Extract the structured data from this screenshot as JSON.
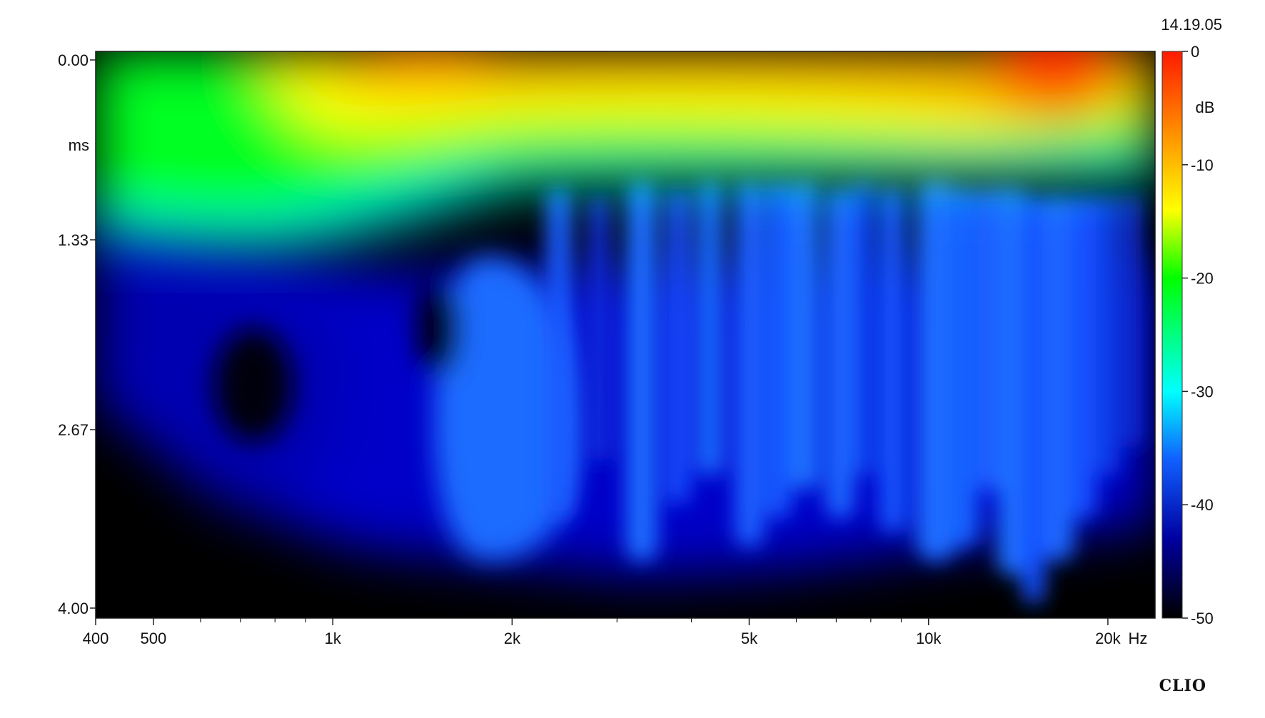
{
  "header": {
    "timestamp": "14.19.05"
  },
  "brand": {
    "text": "CLIO"
  },
  "chart_data": {
    "type": "heatmap",
    "title": "",
    "xlabel": "Hz",
    "ylabel": "ms",
    "x_scale": "log",
    "xlim": [
      400,
      24000
    ],
    "ylim": [
      0.0,
      4.0
    ],
    "x_tick_labels": [
      {
        "value": 400,
        "label": "400"
      },
      {
        "value": 500,
        "label": "500"
      },
      {
        "value": 1000,
        "label": "1k"
      },
      {
        "value": 2000,
        "label": "2k"
      },
      {
        "value": 5000,
        "label": "5k"
      },
      {
        "value": 10000,
        "label": "10k"
      },
      {
        "value": 20000,
        "label": "20k"
      }
    ],
    "x_minor_ticks": [
      600,
      700,
      800,
      900,
      3000,
      4000,
      6000,
      7000,
      8000,
      9000
    ],
    "y_tick_labels": [
      {
        "value": 0.0,
        "label": "0.00"
      },
      {
        "value": 1.33,
        "label": "1.33"
      },
      {
        "value": 2.67,
        "label": "2.67"
      },
      {
        "value": 4.0,
        "label": "4.00"
      }
    ],
    "colorbar": {
      "unit": "dB",
      "range": [
        -50,
        0
      ],
      "ticks": [
        0,
        -10,
        -20,
        -30,
        -40,
        -50
      ],
      "labels": [
        "0",
        "-10",
        "-20",
        "-30",
        "-40",
        "-50"
      ],
      "colors": [
        "#ff1a00",
        "#ff8c00",
        "#ffff00",
        "#00ff00",
        "#00ffff",
        "#1060ff",
        "#0000a0",
        "#000000"
      ]
    },
    "features": {
      "level_at_0ms_db": -5,
      "decay_to_minus_50db_ms": 3.9,
      "peak_frequency_hz": 15000,
      "peak_level_db": 0,
      "green_boundary_ms_at_400hz": 1.2,
      "green_boundary_ms_above_2khz": 0.8
    }
  }
}
